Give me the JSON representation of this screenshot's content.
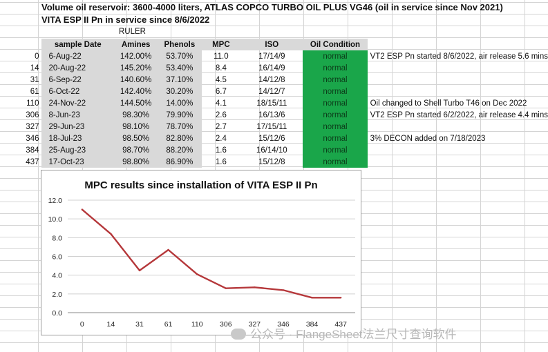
{
  "header": {
    "line1": "Volume oil reservoir:   3600-4000 liters, ATLAS COPCO TURBO OIL PLUS VG46 (oil in service since Nov 2021)",
    "line2": "VITA ESP II Pn  in service since 8/6/2022",
    "ruler": "RULER"
  },
  "table": {
    "columns": [
      "sample Date",
      "Amines",
      "Phenols",
      "MPC",
      "ISO",
      "Oil Condition"
    ],
    "rows": [
      {
        "days": "0",
        "date": "6-Aug-22",
        "amines": "142.00%",
        "phenols": "53.70%",
        "mpc": "11.0",
        "iso": "17/14/9",
        "cond": "normal",
        "note": "VT2 ESP Pn started 8/6/2022, air release 5.6 mins"
      },
      {
        "days": "14",
        "date": "20-Aug-22",
        "amines": "145.20%",
        "phenols": "53.40%",
        "mpc": "8.4",
        "iso": "16/14/9",
        "cond": "normal",
        "note": ""
      },
      {
        "days": "31",
        "date": "6-Sep-22",
        "amines": "140.60%",
        "phenols": "37.10%",
        "mpc": "4.5",
        "iso": "14/12/8",
        "cond": "normal",
        "note": ""
      },
      {
        "days": "61",
        "date": "6-Oct-22",
        "amines": "142.40%",
        "phenols": "30.20%",
        "mpc": "6.7",
        "iso": "14/12/7",
        "cond": "normal",
        "note": ""
      },
      {
        "days": "110",
        "date": "24-Nov-22",
        "amines": "144.50%",
        "phenols": "14.00%",
        "mpc": "4.1",
        "iso": "18/15/11",
        "cond": "normal",
        "note": "Oil changed to Shell Turbo T46 on Dec 2022"
      },
      {
        "days": "306",
        "date": "8-Jun-23",
        "amines": "98.30%",
        "phenols": "79.90%",
        "mpc": "2.6",
        "iso": "16/13/6",
        "cond": "normal",
        "note": "VT2 ESP Pn started 6/2/2022, air release 4.4 mins"
      },
      {
        "days": "327",
        "date": "29-Jun-23",
        "amines": "98.10%",
        "phenols": "78.70%",
        "mpc": "2.7",
        "iso": "17/15/11",
        "cond": "normal",
        "note": ""
      },
      {
        "days": "346",
        "date": "18-Jul-23",
        "amines": "98.50%",
        "phenols": "82.80%",
        "mpc": "2.4",
        "iso": "15/12/6",
        "cond": "normal",
        "note": "3% DECON added on 7/18/2023"
      },
      {
        "days": "384",
        "date": "25-Aug-23",
        "amines": "98.70%",
        "phenols": "88.20%",
        "mpc": "1.6",
        "iso": "16/14/10",
        "cond": "normal",
        "note": ""
      },
      {
        "days": "437",
        "date": "17-Oct-23",
        "amines": "98.80%",
        "phenols": "86.90%",
        "mpc": "1.6",
        "iso": "15/12/8",
        "cond": "normal",
        "note": ""
      }
    ]
  },
  "colors": {
    "oil_condition_bg": "#1aa64a",
    "line": "#b5373a",
    "shade": "#d9d9d9"
  },
  "watermark": "公众号 · FlangeSheet法兰尺寸查询软件",
  "chart_data": {
    "type": "line",
    "title": "MPC results since installation of VITA ESP II Pn",
    "categories": [
      "0",
      "14",
      "31",
      "61",
      "110",
      "306",
      "327",
      "346",
      "384",
      "437"
    ],
    "values": [
      11.0,
      8.4,
      4.5,
      6.7,
      4.1,
      2.6,
      2.7,
      2.4,
      1.6,
      1.6
    ],
    "yticks": [
      "0.0",
      "2.0",
      "4.0",
      "6.0",
      "8.0",
      "10.0",
      "12.0"
    ],
    "ylim": [
      0,
      12
    ],
    "xlabel": "",
    "ylabel": "",
    "grid": true,
    "legend": "none"
  }
}
